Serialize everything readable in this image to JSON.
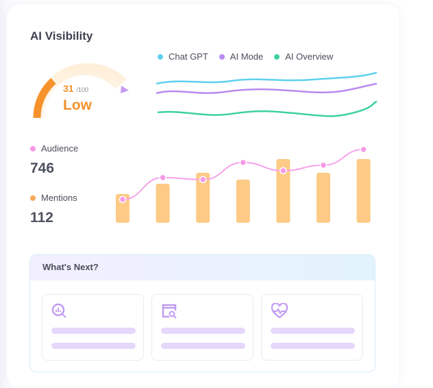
{
  "card": {
    "title": "AI Visibility"
  },
  "gauge": {
    "score": "31",
    "max": "/100",
    "level": "Low",
    "fraction": 0.31,
    "color": "#f5922b"
  },
  "legend": [
    {
      "label": "Chat GPT",
      "color": "#5fd0ef"
    },
    {
      "label": "AI Mode",
      "color": "#b98af0"
    },
    {
      "label": "AI Overview",
      "color": "#3ed39b"
    }
  ],
  "metrics": [
    {
      "label": "Audience",
      "value": "746",
      "color": "#f59ae6"
    },
    {
      "label": "Mentions",
      "value": "112",
      "color": "#f8a958"
    }
  ],
  "chart_data": {
    "type": "bar",
    "series": [
      {
        "name": "Mentions",
        "type": "bar",
        "values": [
          42,
          57,
          73,
          63,
          93,
          73,
          93
        ]
      },
      {
        "name": "Audience",
        "type": "line",
        "values": [
          34,
          66,
          63,
          88,
          76,
          84,
          107
        ]
      }
    ]
  },
  "whats_next": {
    "title": "What's Next?",
    "tiles": [
      {
        "icon": "search-chart-icon"
      },
      {
        "icon": "browser-search-icon"
      },
      {
        "icon": "heart-pulse-icon"
      }
    ]
  }
}
